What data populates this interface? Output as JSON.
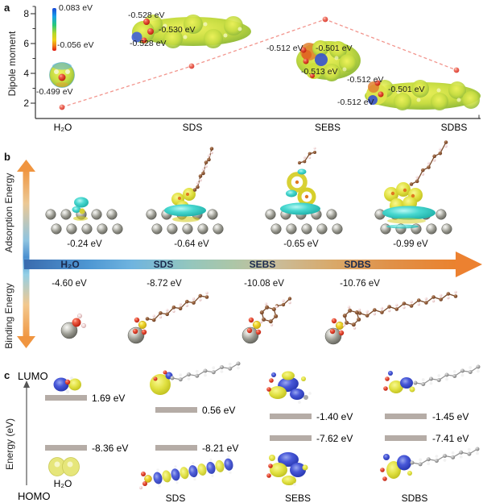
{
  "figure": {
    "panel_a_letter": "a",
    "panel_b_letter": "b",
    "panel_c_letter": "c"
  },
  "a": {
    "ylabel": "Dipole moment",
    "yticks": [
      "8",
      "6",
      "4",
      "2"
    ],
    "colorbar_max": "0.083 eV",
    "colorbar_min": "-0.056 eV",
    "h2o_esp": "-0.499 eV",
    "sds_esp": [
      "-0.528 eV",
      "-0.530 eV",
      "-0.528 eV"
    ],
    "sebs_esp": [
      "-0.512 eV",
      "-0.501 eV",
      "-0.513 eV"
    ],
    "sdbs_esp": [
      "-0.512 eV",
      "-0.501 eV",
      "-0.512 eV"
    ],
    "xticks": [
      "H₂O",
      "SDS",
      "SEBS",
      "SDBS"
    ]
  },
  "b": {
    "adsorption_axis_label": "Adsorption Energy",
    "binding_axis_label": "Binding Energy",
    "adsorption_values": [
      "-0.24 eV",
      "-0.64 eV",
      "-0.65 eV",
      "-0.99 eV"
    ],
    "arrow_labels": [
      "H₂O",
      "SDS",
      "SEBS",
      "SDBS"
    ],
    "binding_values": [
      "-4.60 eV",
      "-8.72 eV",
      "-10.08 eV",
      "-10.76 eV"
    ]
  },
  "c": {
    "lumo_label": "LUMO",
    "homo_label": "HOMO",
    "ylabel": "Energy (eV)",
    "lumo_values": [
      "1.69 eV",
      "0.56 eV",
      "-1.40 eV",
      "-1.45 eV"
    ],
    "homo_values": [
      "-8.36 eV",
      "-8.21 eV",
      "-7.62 eV",
      "-7.41 eV"
    ],
    "names": [
      "H₂O",
      "SDS",
      "SEBS",
      "SDBS"
    ]
  },
  "colors": {
    "dashed_line": "#f2958d",
    "marker": "#e8584e",
    "level_bar": "#b5aca6",
    "iso_cyan": "#3ecfc9",
    "iso_yellow": "#d6cf2a",
    "arrow_orange": "#f09540",
    "arrow_blue": "#4a8fd0"
  },
  "chart_data": [
    {
      "type": "line",
      "title": "Dipole moment vs molecule (panel a)",
      "categories": [
        "H2O",
        "SDS",
        "SEBS",
        "SDBS"
      ],
      "values": [
        1.8,
        4.5,
        7.6,
        4.2
      ],
      "xlabel": "",
      "ylabel": "Dipole moment",
      "ylim": [
        1,
        8.5
      ],
      "line_style": "dashed",
      "grid": false,
      "esp_point_labels_eV": {
        "H2O": [
          -0.499
        ],
        "SDS": [
          -0.528,
          -0.53,
          -0.528
        ],
        "SEBS": [
          -0.512,
          -0.501,
          -0.513
        ],
        "SDBS": [
          -0.512,
          -0.501,
          -0.512
        ]
      },
      "esp_colorbar_range_eV": [
        -0.056,
        0.083
      ]
    },
    {
      "type": "table",
      "title": "Adsorption and binding energies (panel b)",
      "categories": [
        "H2O",
        "SDS",
        "SEBS",
        "SDBS"
      ],
      "series": [
        {
          "name": "Adsorption energy (eV)",
          "values": [
            -0.24,
            -0.64,
            -0.65,
            -0.99
          ]
        },
        {
          "name": "Binding energy (eV)",
          "values": [
            -4.6,
            -8.72,
            -10.08,
            -10.76
          ]
        }
      ]
    },
    {
      "type": "table",
      "title": "Frontier orbital energy levels (panel c)",
      "categories": [
        "H2O",
        "SDS",
        "SEBS",
        "SDBS"
      ],
      "ylabel": "Energy (eV)",
      "series": [
        {
          "name": "LUMO (eV)",
          "values": [
            1.69,
            0.56,
            -1.4,
            -1.45
          ]
        },
        {
          "name": "HOMO (eV)",
          "values": [
            -8.36,
            -8.21,
            -7.62,
            -7.41
          ]
        }
      ]
    }
  ]
}
